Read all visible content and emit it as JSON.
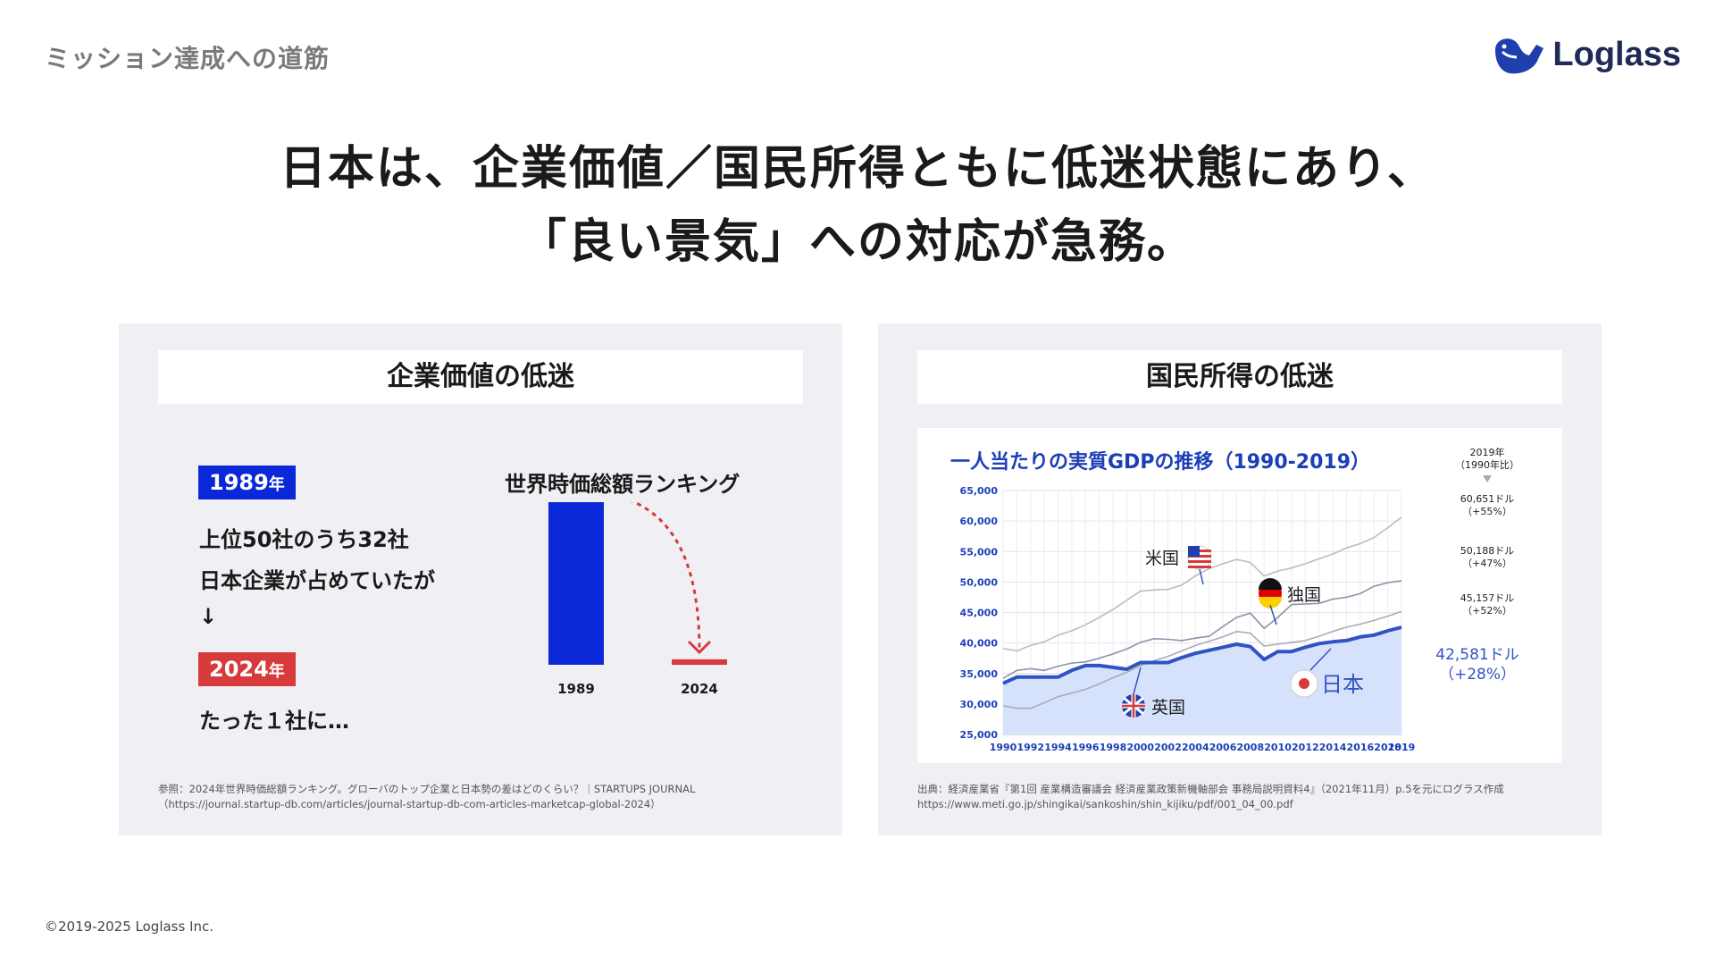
{
  "header": {
    "section_label": "ミッション達成への道筋",
    "logo_text": "Loglass"
  },
  "headline": {
    "line1": "日本は、企業価値／国民所得ともに低迷状態にあり、",
    "line2": "「良い景気」への対応が急務。"
  },
  "left_panel": {
    "title": "企業価値の低迷",
    "badge_1989": "1989",
    "badge_2024": "2024",
    "badge_suffix": "年",
    "text_line1": "上位50社のうち32社",
    "text_line2": "日本企業が占めていたが",
    "arrow": "↓",
    "text_line3": "たった１社に…",
    "source_line1": "参照：2024年世界時価総額ランキング。グローバのトップ企業と日本勢の差はどのくらい？｜STARTUPS JOURNAL",
    "source_line2": "（https://journal.startup-db.com/articles/journal-startup-db-com-articles-marketcap-global-2024）"
  },
  "right_panel": {
    "title": "国民所得の低迷",
    "source_line1": "出典：経済産業省『第1回 産業構造審議会 経済産業政策新機軸部会 事務局説明資料4』（2021年11月）p.5を元にログラス作成",
    "source_line2": "https://www.meti.go.jp/shingikai/sankoshin/shin_kijiku/pdf/001_04_00.pdf"
  },
  "colors": {
    "jp_blue": "#0a28d8",
    "red": "#d63a3a",
    "jp_line": "#2f53c4",
    "area": "#d6e2fb",
    "grey_line": "#9aa0ac",
    "title_blue": "#1c3fb8"
  },
  "chart_data": [
    {
      "type": "bar",
      "title": "世界時価総額ランキング",
      "categories": [
        "1989",
        "2024"
      ],
      "values": [
        32,
        1
      ],
      "ylim": [
        0,
        32
      ]
    },
    {
      "type": "line",
      "title": "一人当たりの実質GDPの推移（1990-2019）",
      "ylim": [
        25000,
        65000
      ],
      "y_ticks": [
        "65,000",
        "60,000",
        "55,000",
        "50,000",
        "45,000",
        "40,000",
        "35,000",
        "30,000",
        "25,000"
      ],
      "x_ticks": [
        "1990",
        "1992",
        "1994",
        "1996",
        "1998",
        "2000",
        "2002",
        "2004",
        "2006",
        "2008",
        "2010",
        "2012",
        "2014",
        "2016",
        "2018",
        "2019"
      ],
      "x": [
        1990,
        1991,
        1992,
        1993,
        1994,
        1995,
        1996,
        1997,
        1998,
        1999,
        2000,
        2001,
        2002,
        2003,
        2004,
        2005,
        2006,
        2007,
        2008,
        2009,
        2010,
        2011,
        2012,
        2013,
        2014,
        2015,
        2016,
        2017,
        2018,
        2019
      ],
      "header_note_line1": "2019年",
      "header_note_line2": "（1990年比）",
      "series": [
        {
          "name": "米国",
          "values": [
            39100,
            38700,
            39600,
            40200,
            41300,
            42000,
            43000,
            44200,
            45500,
            47000,
            48500,
            48700,
            48800,
            49500,
            51000,
            52200,
            53000,
            53700,
            53200,
            51000,
            51800,
            52300,
            53000,
            53800,
            54600,
            55600,
            56300,
            57300,
            58900,
            60651
          ],
          "end_label_1": "60,651ドル",
          "end_label_2": "（+55%）"
        },
        {
          "name": "独国",
          "values": [
            34200,
            35500,
            35800,
            35500,
            36200,
            36700,
            36900,
            37500,
            38200,
            39000,
            40100,
            40700,
            40600,
            40400,
            40800,
            41100,
            42700,
            44200,
            44900,
            42400,
            44200,
            46300,
            46400,
            46500,
            47200,
            47500,
            48100,
            49300,
            49900,
            50188
          ],
          "end_label_1": "50,188ドル",
          "end_label_2": "（+47%）"
        },
        {
          "name": "英国",
          "values": [
            29700,
            29300,
            29300,
            30200,
            31200,
            31800,
            32400,
            33300,
            34300,
            35200,
            36300,
            37100,
            37800,
            38700,
            39600,
            40300,
            41000,
            41900,
            41600,
            39500,
            39800,
            40100,
            40400,
            41100,
            41900,
            42600,
            43100,
            43700,
            44400,
            45157
          ],
          "end_label_1": "45,157ドル",
          "end_label_2": "（+52%）"
        },
        {
          "name": "日本",
          "values": [
            33400,
            34400,
            34400,
            34400,
            34400,
            35500,
            36300,
            36300,
            36000,
            35700,
            36800,
            36800,
            36800,
            37600,
            38300,
            38800,
            39300,
            39800,
            39400,
            37300,
            38600,
            38600,
            39300,
            39900,
            40200,
            40400,
            41000,
            41300,
            42000,
            42581
          ],
          "end_label_1": "42,581ドル",
          "end_label_2": "（+28%）"
        }
      ]
    }
  ]
}
